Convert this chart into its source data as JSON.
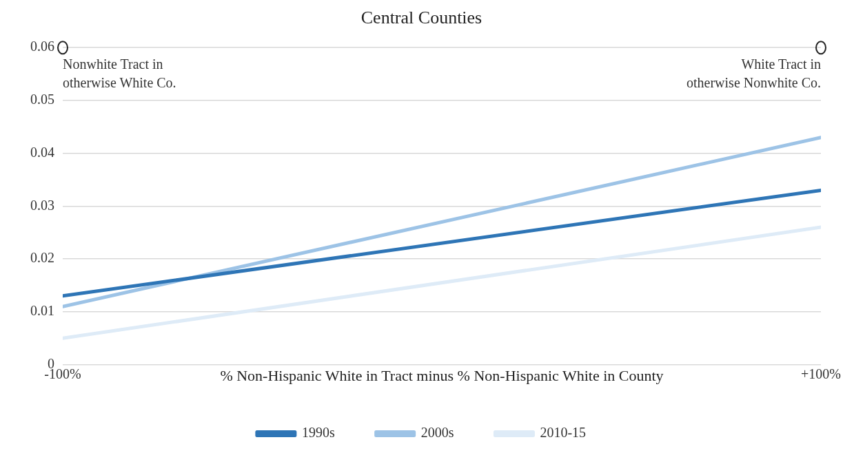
{
  "chart_data": {
    "type": "line",
    "title": "Central Counties",
    "xlabel": "% Non-Hispanic White in Tract minus % Non-Hispanic White in County",
    "x": [
      -100,
      100
    ],
    "series": [
      {
        "name": "1990s",
        "color": "#2e75b6",
        "values": [
          0.013,
          0.033
        ]
      },
      {
        "name": "2000s",
        "color": "#9dc3e6",
        "values": [
          0.011,
          0.043
        ]
      },
      {
        "name": "2010-15",
        "color": "#deebf7",
        "values": [
          0.005,
          0.026
        ]
      }
    ],
    "xlim": [
      -100,
      100
    ],
    "xticks": [
      {
        "value": -100,
        "label": "-100%"
      },
      {
        "value": 100,
        "label": "+100%"
      }
    ],
    "ylim": [
      0,
      0.06
    ],
    "yticks": [
      0,
      0.01,
      0.02,
      0.03,
      0.04,
      0.05,
      0.06
    ],
    "annotations": [
      {
        "text": "Nonwhite Tract in\notherwise White Co.",
        "x": -100,
        "y": 0.06
      },
      {
        "text": "White Tract in\notherwise Nonwhite Co.",
        "x": 100,
        "y": 0.06
      }
    ],
    "grid": "y",
    "legend": "bottom",
    "marker": "none",
    "line_style": "solid"
  }
}
